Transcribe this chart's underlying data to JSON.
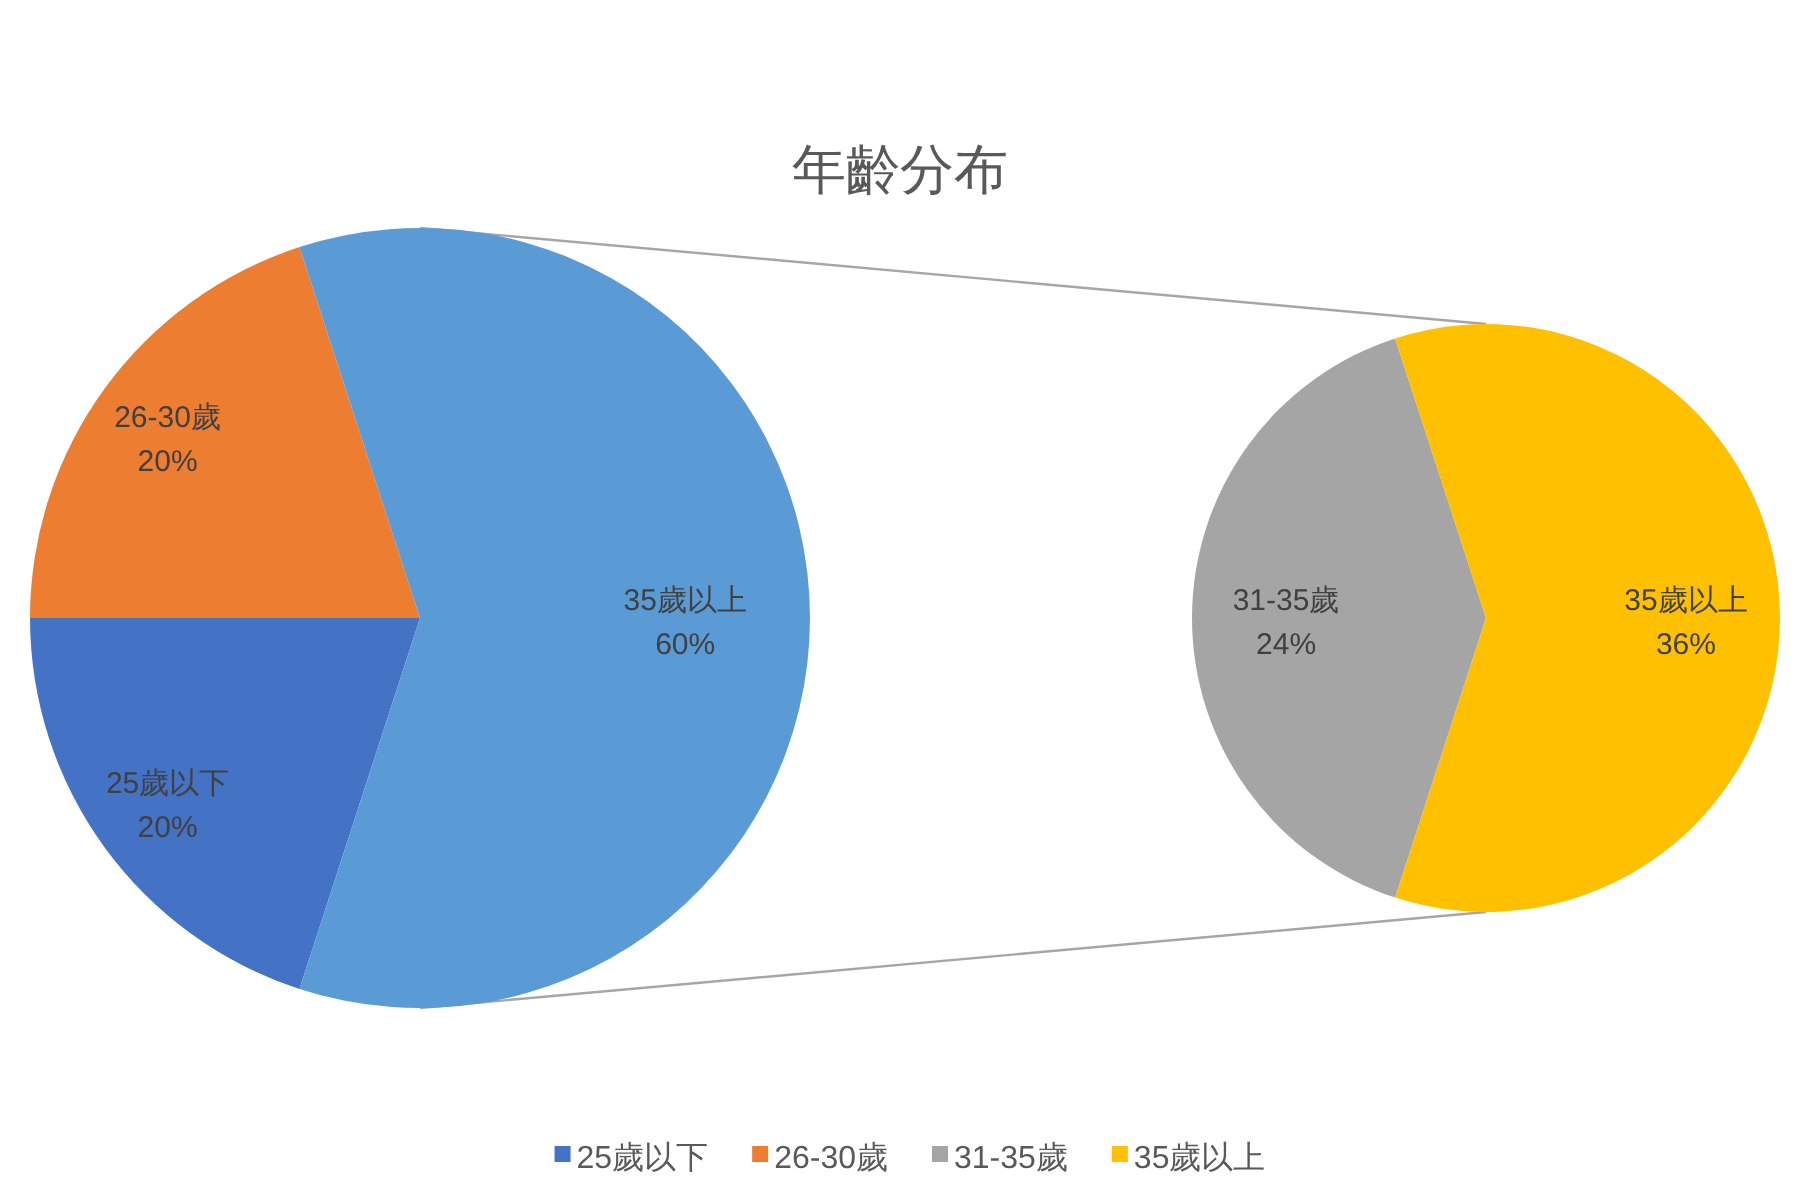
{
  "chart_data": [
    {
      "type": "pie",
      "title": "年齡分布",
      "categories": [
        "25歲以下",
        "26-30歲",
        "35歲以上"
      ],
      "values": [
        20,
        20,
        60
      ],
      "value_labels": [
        "20%",
        "20%",
        "60%"
      ],
      "colors": [
        "#4472c4",
        "#ed7d31",
        "#5b9bd5"
      ],
      "legend": "bottom"
    },
    {
      "type": "pie",
      "categories": [
        "31-35歲",
        "35歲以上"
      ],
      "values": [
        24,
        36
      ],
      "value_labels": [
        "24%",
        "36%"
      ],
      "colors": [
        "#a5a5a5",
        "#ffc000"
      ],
      "legend": "bottom"
    }
  ]
}
